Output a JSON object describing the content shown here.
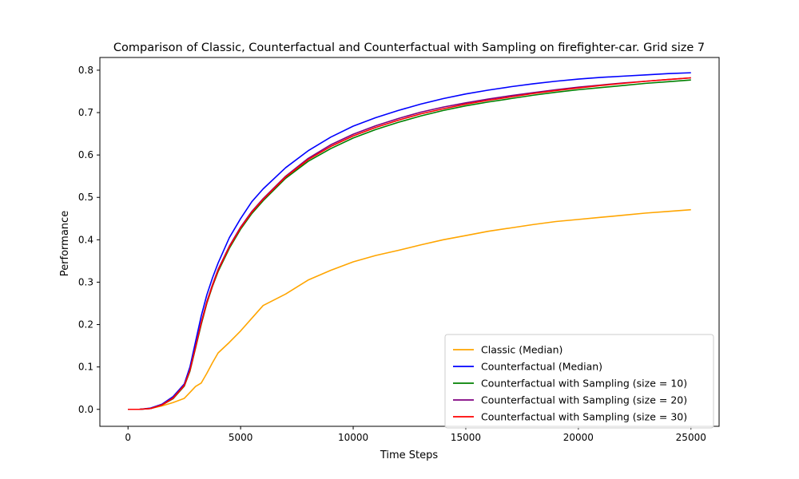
{
  "chart_data": {
    "type": "line",
    "title": "Comparison of Classic, Counterfactual and Counterfactual with Sampling on firefighter-car. Grid size 7",
    "xlabel": "Time Steps",
    "ylabel": "Performance",
    "xlim": [
      -1250,
      26250
    ],
    "ylim": [
      -0.04,
      0.83
    ],
    "xticks": [
      0,
      5000,
      10000,
      15000,
      20000,
      25000
    ],
    "xtick_labels": [
      "0",
      "5000",
      "10000",
      "15000",
      "20000",
      "25000"
    ],
    "yticks": [
      0.0,
      0.1,
      0.2,
      0.3,
      0.4,
      0.5,
      0.6,
      0.7,
      0.8
    ],
    "ytick_labels": [
      "0.0",
      "0.1",
      "0.2",
      "0.3",
      "0.4",
      "0.5",
      "0.6",
      "0.7",
      "0.8"
    ],
    "grid": false,
    "legend_position": "lower-right",
    "x": [
      0,
      500,
      1000,
      1500,
      2000,
      2500,
      2750,
      3000,
      3250,
      3500,
      3750,
      4000,
      4500,
      5000,
      5500,
      6000,
      7000,
      8000,
      9000,
      10000,
      11000,
      12000,
      13000,
      14000,
      15000,
      16000,
      17000,
      18000,
      19000,
      20000,
      21000,
      22000,
      23000,
      24000,
      25000
    ],
    "series": [
      {
        "name": "Classic (Median)",
        "color": "#ffa500",
        "values": [
          0,
          0,
          0.002,
          0.008,
          0.016,
          0.026,
          0.04,
          0.054,
          0.062,
          0.085,
          0.11,
          0.133,
          0.158,
          0.185,
          0.215,
          0.245,
          0.272,
          0.305,
          0.328,
          0.348,
          0.363,
          0.375,
          0.388,
          0.4,
          0.41,
          0.42,
          0.428,
          0.436,
          0.443,
          0.448,
          0.453,
          0.458,
          0.463,
          0.467,
          0.471
        ]
      },
      {
        "name": "Counterfactual (Median)",
        "color": "#0000ff",
        "values": [
          0,
          0,
          0.003,
          0.012,
          0.03,
          0.06,
          0.1,
          0.16,
          0.22,
          0.27,
          0.31,
          0.345,
          0.405,
          0.45,
          0.49,
          0.52,
          0.57,
          0.61,
          0.642,
          0.668,
          0.688,
          0.705,
          0.72,
          0.733,
          0.744,
          0.753,
          0.761,
          0.768,
          0.774,
          0.779,
          0.783,
          0.786,
          0.789,
          0.792,
          0.794
        ]
      },
      {
        "name": "Counterfactual with Sampling (size = 10)",
        "color": "#008000",
        "values": [
          0,
          0,
          0.002,
          0.01,
          0.025,
          0.055,
          0.09,
          0.145,
          0.2,
          0.25,
          0.29,
          0.325,
          0.38,
          0.425,
          0.462,
          0.492,
          0.545,
          0.585,
          0.615,
          0.64,
          0.66,
          0.677,
          0.692,
          0.705,
          0.716,
          0.725,
          0.733,
          0.741,
          0.748,
          0.754,
          0.759,
          0.764,
          0.769,
          0.773,
          0.777
        ]
      },
      {
        "name": "Counterfactual with Sampling (size = 20)",
        "color": "#800080",
        "values": [
          0,
          0,
          0.002,
          0.011,
          0.028,
          0.058,
          0.093,
          0.148,
          0.205,
          0.254,
          0.294,
          0.33,
          0.385,
          0.43,
          0.467,
          0.497,
          0.55,
          0.592,
          0.624,
          0.649,
          0.669,
          0.686,
          0.701,
          0.713,
          0.723,
          0.732,
          0.74,
          0.747,
          0.754,
          0.76,
          0.765,
          0.77,
          0.774,
          0.778,
          0.782
        ]
      },
      {
        "name": "Counterfactual with Sampling (size = 30)",
        "color": "#ff0000",
        "values": [
          0,
          0,
          0.002,
          0.01,
          0.026,
          0.056,
          0.092,
          0.147,
          0.203,
          0.252,
          0.292,
          0.328,
          0.383,
          0.428,
          0.465,
          0.495,
          0.548,
          0.589,
          0.62,
          0.645,
          0.665,
          0.682,
          0.697,
          0.709,
          0.72,
          0.729,
          0.737,
          0.745,
          0.752,
          0.758,
          0.764,
          0.769,
          0.774,
          0.778,
          0.782
        ]
      }
    ]
  }
}
